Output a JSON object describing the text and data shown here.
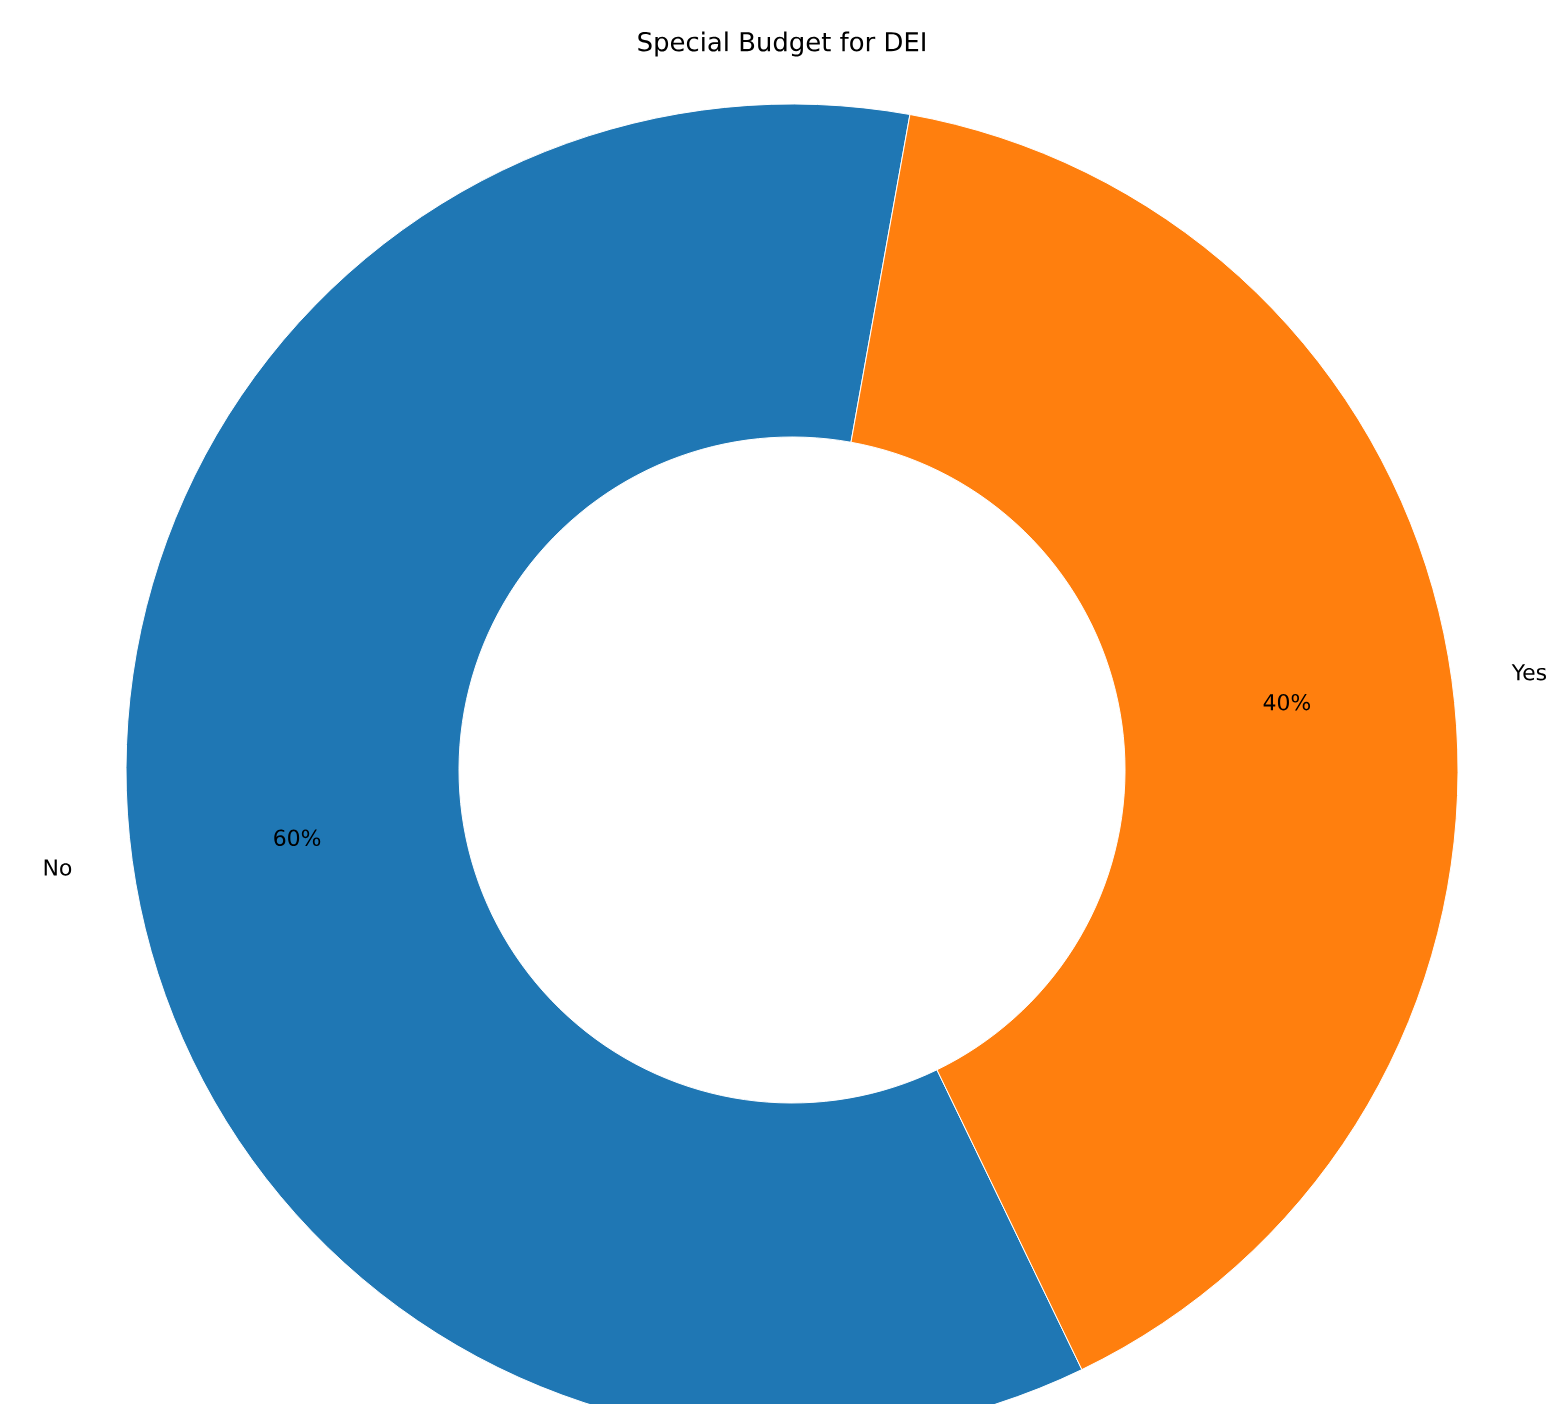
{
  "chart_data": {
    "type": "donut",
    "title": "Special Budget for DEI",
    "categories": [
      "No",
      "Yes"
    ],
    "values": [
      60,
      40
    ],
    "colors": [
      "#1f77b4",
      "#ff7f0e"
    ],
    "data_labels": true,
    "value_labels": [
      "60%",
      "40%"
    ]
  }
}
